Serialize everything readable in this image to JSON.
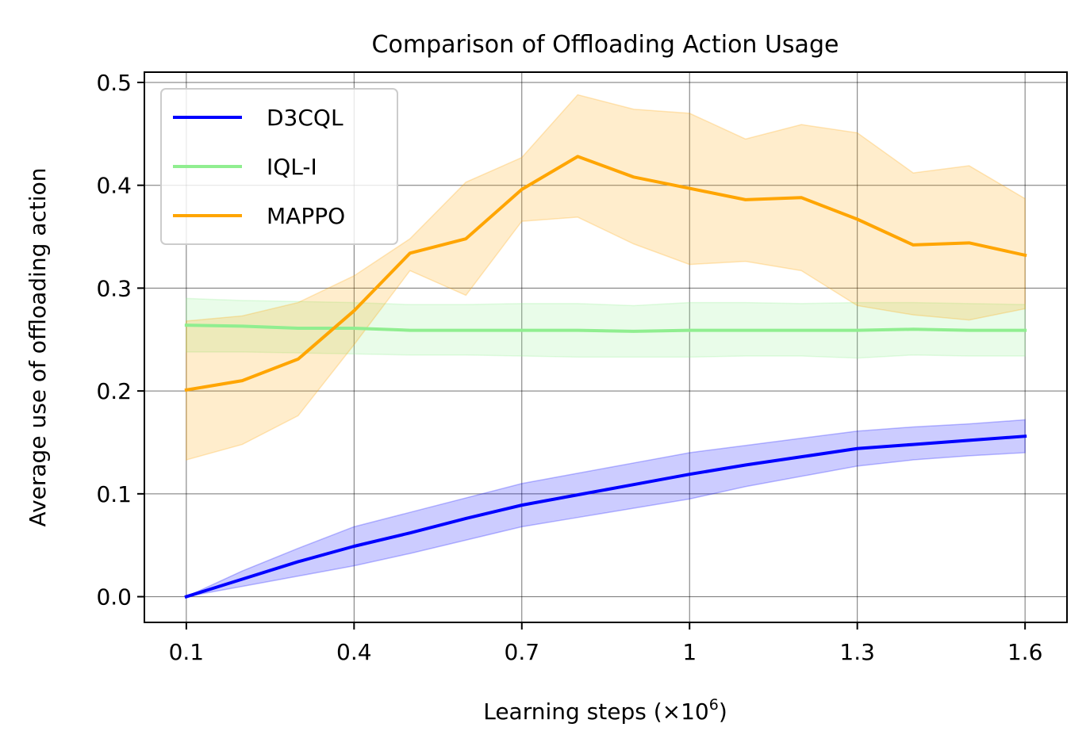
{
  "chart_data": {
    "type": "line",
    "title": "Comparison of Offloading Action Usage",
    "xlabel_base": "Learning steps (×10",
    "xlabel_exp": "6",
    "xlabel_close": ")",
    "ylabel": "Average use of offloading action",
    "xlim": [
      0.025,
      1.675
    ],
    "ylim": [
      -0.025,
      0.51
    ],
    "grid": true,
    "legend_position": "top-left",
    "x_ticks": [
      0.1,
      0.4,
      0.7,
      1.0,
      1.3,
      1.6
    ],
    "x_tick_labels": [
      "0.1",
      "0.4",
      "0.7",
      "1",
      "1.3",
      "1.6"
    ],
    "y_ticks": [
      0.0,
      0.1,
      0.2,
      0.3,
      0.4,
      0.5
    ],
    "y_tick_labels": [
      "0.0",
      "0.1",
      "0.2",
      "0.3",
      "0.4",
      "0.5"
    ],
    "x": [
      0.1,
      0.2,
      0.3,
      0.4,
      0.5,
      0.6,
      0.7,
      0.8,
      0.9,
      1.0,
      1.1,
      1.2,
      1.3,
      1.4,
      1.5,
      1.6
    ],
    "series": [
      {
        "name": "D3CQL",
        "color": "#0000ff",
        "values": [
          0.0,
          0.017,
          0.034,
          0.049,
          0.062,
          0.076,
          0.089,
          0.099,
          0.109,
          0.119,
          0.128,
          0.136,
          0.144,
          0.148,
          0.152,
          0.156
        ],
        "lower": [
          0.0,
          0.01,
          0.02,
          0.03,
          0.042,
          0.055,
          0.068,
          0.077,
          0.086,
          0.095,
          0.107,
          0.117,
          0.127,
          0.133,
          0.137,
          0.14
        ],
        "upper": [
          0.0,
          0.025,
          0.047,
          0.068,
          0.082,
          0.096,
          0.11,
          0.12,
          0.13,
          0.14,
          0.147,
          0.154,
          0.161,
          0.165,
          0.168,
          0.172
        ]
      },
      {
        "name": "IQL-I",
        "color": "#90ee90",
        "values": [
          0.264,
          0.263,
          0.261,
          0.261,
          0.259,
          0.259,
          0.259,
          0.259,
          0.258,
          0.259,
          0.259,
          0.259,
          0.259,
          0.26,
          0.259,
          0.259
        ],
        "lower": [
          0.238,
          0.238,
          0.237,
          0.236,
          0.235,
          0.235,
          0.234,
          0.233,
          0.233,
          0.233,
          0.234,
          0.234,
          0.232,
          0.235,
          0.234,
          0.234
        ],
        "upper": [
          0.29,
          0.288,
          0.287,
          0.286,
          0.284,
          0.284,
          0.285,
          0.285,
          0.283,
          0.286,
          0.286,
          0.285,
          0.286,
          0.286,
          0.285,
          0.284
        ]
      },
      {
        "name": "MAPPO",
        "color": "#ffa500",
        "values": [
          0.201,
          0.21,
          0.231,
          0.278,
          0.334,
          0.348,
          0.396,
          0.428,
          0.408,
          0.397,
          0.386,
          0.388,
          0.367,
          0.342,
          0.344,
          0.332
        ],
        "lower": [
          0.133,
          0.148,
          0.176,
          0.245,
          0.317,
          0.293,
          0.365,
          0.369,
          0.343,
          0.323,
          0.326,
          0.317,
          0.283,
          0.274,
          0.269,
          0.28
        ],
        "upper": [
          0.268,
          0.273,
          0.286,
          0.312,
          0.348,
          0.403,
          0.427,
          0.488,
          0.474,
          0.47,
          0.445,
          0.459,
          0.451,
          0.412,
          0.419,
          0.387
        ]
      }
    ]
  }
}
